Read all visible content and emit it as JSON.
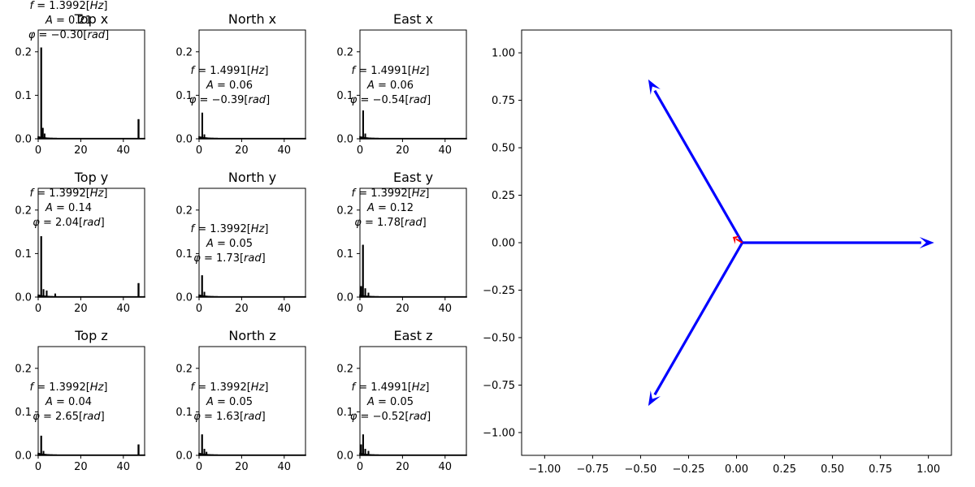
{
  "spectra": [
    {
      "title": "Top x",
      "f": "1.3992",
      "A": "0.21",
      "phi": "−0.30",
      "peaks": [
        [
          1.4,
          0.21
        ],
        [
          2.2,
          0.025
        ],
        [
          3.0,
          0.012
        ],
        [
          47.2,
          0.045
        ]
      ]
    },
    {
      "title": "North x",
      "f": "1.4991",
      "A": "0.06",
      "phi": "−0.39",
      "peaks": [
        [
          1.5,
          0.06
        ],
        [
          2.5,
          0.01
        ]
      ]
    },
    {
      "title": "East x",
      "f": "1.4991",
      "A": "0.06",
      "phi": "−0.54",
      "peaks": [
        [
          1.5,
          0.065
        ],
        [
          2.5,
          0.012
        ]
      ]
    },
    {
      "title": "Top y",
      "f": "1.3992",
      "A": "0.14",
      "phi": "2.04",
      "peaks": [
        [
          1.4,
          0.14
        ],
        [
          2.5,
          0.018
        ],
        [
          4.0,
          0.015
        ],
        [
          8.0,
          0.008
        ],
        [
          47.2,
          0.032
        ]
      ]
    },
    {
      "title": "North y",
      "f": "1.3992",
      "A": "0.05",
      "phi": "1.73",
      "peaks": [
        [
          1.4,
          0.05
        ],
        [
          2.5,
          0.012
        ]
      ]
    },
    {
      "title": "East y",
      "f": "1.3992",
      "A": "0.12",
      "phi": "1.78",
      "peaks": [
        [
          1.4,
          0.12
        ],
        [
          0.6,
          0.025
        ],
        [
          2.5,
          0.02
        ],
        [
          4.0,
          0.01
        ]
      ]
    },
    {
      "title": "Top z",
      "f": "1.3992",
      "A": "0.04",
      "phi": "2.65",
      "peaks": [
        [
          1.4,
          0.045
        ],
        [
          2.5,
          0.01
        ],
        [
          47.2,
          0.025
        ]
      ]
    },
    {
      "title": "North z",
      "f": "1.3992",
      "A": "0.05",
      "phi": "1.63",
      "peaks": [
        [
          1.4,
          0.048
        ],
        [
          2.5,
          0.015
        ],
        [
          3.5,
          0.008
        ]
      ]
    },
    {
      "title": "East z",
      "f": "1.4991",
      "A": "0.05",
      "phi": "−0.52",
      "peaks": [
        [
          1.5,
          0.048
        ],
        [
          0.6,
          0.025
        ],
        [
          2.5,
          0.015
        ],
        [
          4.0,
          0.01
        ]
      ]
    }
  ],
  "spectra_axes": {
    "xlim": [
      0,
      50
    ],
    "ylim": [
      0,
      0.25
    ],
    "xticks": [
      "0",
      "20",
      "40"
    ],
    "xtick_values": [
      0,
      20,
      40
    ],
    "yticks": [
      "0.0",
      "0.1",
      "0.2"
    ],
    "ytick_values": [
      0,
      0.1,
      0.2
    ]
  },
  "chart_data": {
    "type": "quiver",
    "xlim": [
      -1.12,
      1.12
    ],
    "ylim": [
      -1.12,
      1.12
    ],
    "xticks": [
      "−1.00",
      "−0.75",
      "−0.50",
      "−0.25",
      "0.00",
      "0.25",
      "0.50",
      "0.75",
      "1.00"
    ],
    "xtick_values": [
      -1.0,
      -0.75,
      -0.5,
      -0.25,
      0.0,
      0.25,
      0.5,
      0.75,
      1.0
    ],
    "yticks": [
      "−1.00",
      "−0.75",
      "−0.50",
      "−0.25",
      "0.00",
      "0.25",
      "0.50",
      "0.75",
      "1.00"
    ],
    "ytick_values": [
      -1.0,
      -0.75,
      -0.5,
      -0.25,
      0.0,
      0.25,
      0.5,
      0.75,
      1.0
    ],
    "arrows": [
      {
        "x0": 0.03,
        "y0": 0.0,
        "x1": 1.03,
        "y1": 0.0,
        "color": "#0000ff"
      },
      {
        "x0": 0.03,
        "y0": 0.0,
        "x1": -0.46,
        "y1": 0.86,
        "color": "#0000ff"
      },
      {
        "x0": 0.03,
        "y0": 0.0,
        "x1": -0.46,
        "y1": -0.86,
        "color": "#0000ff"
      },
      {
        "x0": 0.03,
        "y0": 0.0,
        "x1": -0.02,
        "y1": 0.03,
        "color": "#ff0000"
      }
    ]
  }
}
